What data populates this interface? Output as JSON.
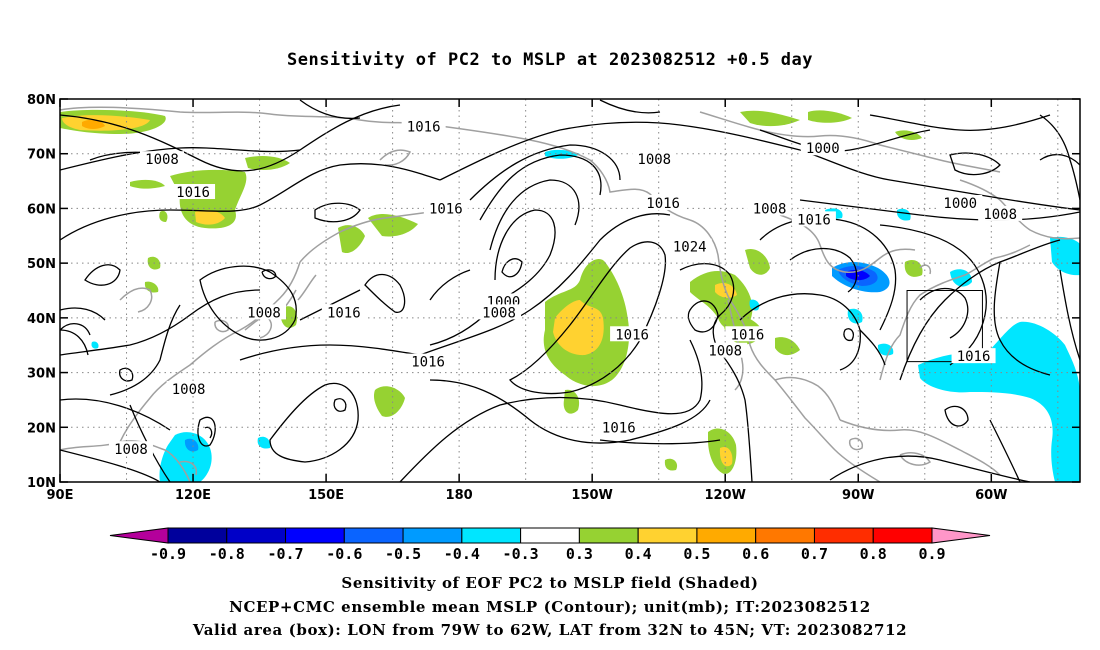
{
  "title": "Sensitivity of PC2 to MSLP at 2023082512 +0.5 day",
  "map": {
    "lon_range": [
      90,
      320
    ],
    "lat_range": [
      10,
      80
    ],
    "lat_ticks": [
      "80N",
      "70N",
      "60N",
      "50N",
      "40N",
      "30N",
      "20N",
      "10N"
    ],
    "lon_ticks": [
      "90E",
      "120E",
      "150E",
      "180",
      "150W",
      "120W",
      "90W",
      "60W"
    ],
    "box": {
      "lon_from": 281,
      "lon_to": 298,
      "lat_from": 32,
      "lat_to": 45
    },
    "contour_labels": [
      {
        "text": "1016",
        "lon": 172,
        "lat": 75
      },
      {
        "text": "1008",
        "lon": 113,
        "lat": 69
      },
      {
        "text": "1016",
        "lon": 120,
        "lat": 63
      },
      {
        "text": "1008",
        "lon": 224,
        "lat": 69
      },
      {
        "text": "1016",
        "lon": 177,
        "lat": 60
      },
      {
        "text": "1016",
        "lon": 226,
        "lat": 61
      },
      {
        "text": "1024",
        "lon": 232,
        "lat": 53
      },
      {
        "text": "1008",
        "lon": 250,
        "lat": 60
      },
      {
        "text": "1000",
        "lon": 262,
        "lat": 71
      },
      {
        "text": "1016",
        "lon": 260,
        "lat": 58
      },
      {
        "text": "1000",
        "lon": 293,
        "lat": 61
      },
      {
        "text": "1008",
        "lon": 302,
        "lat": 59
      },
      {
        "text": "1000",
        "lon": 190,
        "lat": 43
      },
      {
        "text": "1008",
        "lon": 189,
        "lat": 41
      },
      {
        "text": "1008",
        "lon": 136,
        "lat": 41
      },
      {
        "text": "1016",
        "lon": 154,
        "lat": 41
      },
      {
        "text": "1016",
        "lon": 219,
        "lat": 37
      },
      {
        "text": "1016",
        "lon": 245,
        "lat": 37
      },
      {
        "text": "1008",
        "lon": 240,
        "lat": 34
      },
      {
        "text": "1016",
        "lon": 173,
        "lat": 32
      },
      {
        "text": "1008",
        "lon": 119,
        "lat": 27
      },
      {
        "text": "1008",
        "lon": 106,
        "lat": 16
      },
      {
        "text": "1016",
        "lon": 216,
        "lat": 20
      },
      {
        "text": "1016",
        "lon": 296,
        "lat": 33
      }
    ]
  },
  "colorbar": {
    "labels": [
      "-0.9",
      "-0.8",
      "-0.7",
      "-0.6",
      "-0.5",
      "-0.4",
      "-0.3",
      "0.3",
      "0.4",
      "0.5",
      "0.6",
      "0.7",
      "0.8",
      "0.9"
    ],
    "colors": [
      "#b4009b",
      "#00009c",
      "#0000c8",
      "#0000ff",
      "#0a64ff",
      "#009bff",
      "#00e6ff",
      "#ffffff",
      "#96d232",
      "#ffd230",
      "#ffaa00",
      "#ff7800",
      "#ff2d00",
      "#ff0000",
      "#ff96c8"
    ],
    "colors_note": [
      "left-arrow",
      "-0.9",
      "-0.8",
      "-0.7",
      "-0.6",
      "-0.5",
      "-0.4",
      "-0.3 to 0.3",
      "0.3",
      "0.4",
      "0.5",
      "0.6",
      "0.7",
      "0.8",
      "right-arrow"
    ]
  },
  "captions": [
    "Sensitivity of EOF PC2 to MSLP field (Shaded)",
    "NCEP+CMC ensemble mean MSLP (Contour); unit(mb); IT:2023082512",
    "Valid area (box): LON from 79W to 62W, LAT from 32N to 45N; VT: 2023082712"
  ]
}
